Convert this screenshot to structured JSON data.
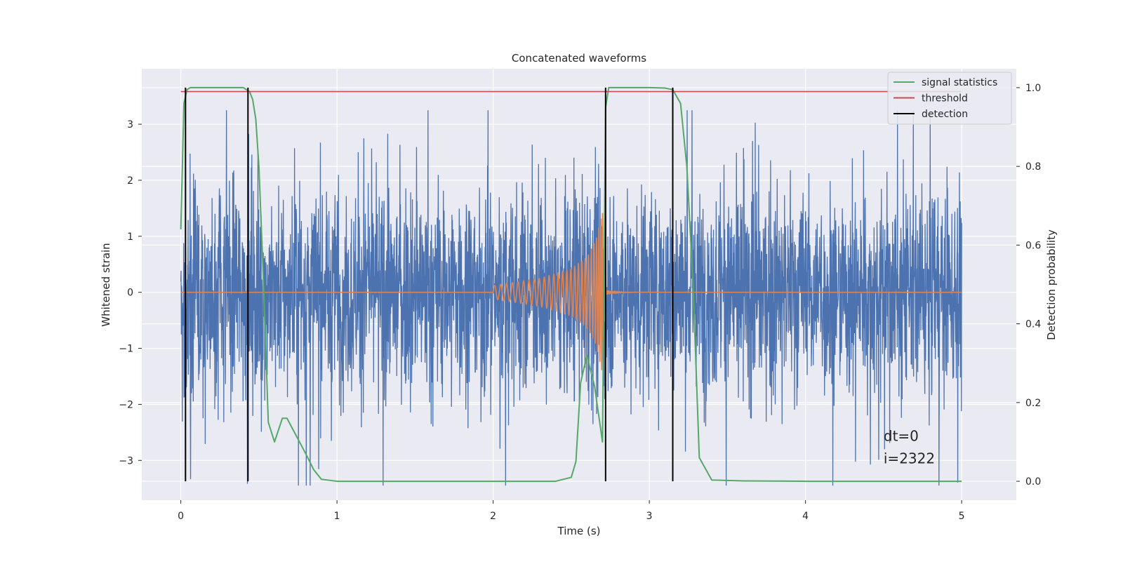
{
  "chart_data": {
    "type": "line",
    "title": "Concatenated waveforms",
    "xlabel": "Time (s)",
    "ylabel": "Whitened strain",
    "y2label": "Detection probability",
    "xlim": [
      -0.25,
      5.35
    ],
    "ylim": [
      -3.71,
      3.99
    ],
    "y2lim": [
      -0.048,
      1.048
    ],
    "x_ticks": [
      0,
      1,
      2,
      3,
      4,
      5
    ],
    "x_tick_labels": [
      "0",
      "1",
      "2",
      "3",
      "4",
      "5"
    ],
    "y_ticks": [
      -3,
      -2,
      -1,
      0,
      1,
      2,
      3
    ],
    "y_tick_labels": [
      "−3",
      "−2",
      "−1",
      "0",
      "1",
      "2",
      "3"
    ],
    "y2_ticks": [
      0.0,
      0.2,
      0.4,
      0.6,
      0.8,
      1.0
    ],
    "y2_tick_labels": [
      "0.0",
      "0.2",
      "0.4",
      "0.6",
      "0.8",
      "1.0"
    ],
    "grid": true,
    "legend_position": "top-right",
    "colors": {
      "noise": "#4c72b0",
      "waveform": "#dd8452",
      "signal_statistics": "#55a868",
      "threshold": "#c44e52",
      "detection": "#000000",
      "background": "#eaeaf2",
      "grid": "#ffffff"
    },
    "series": [
      {
        "name": "",
        "role": "whitened noise strain",
        "axis": "left",
        "x_range": [
          0,
          5
        ],
        "amplitude_envelope": 2.0
      },
      {
        "name": "",
        "role": "injected chirp waveform",
        "axis": "left",
        "x": [
          2.0,
          2.3,
          2.5,
          2.6,
          2.66,
          2.7,
          2.72
        ],
        "amplitude": [
          0.12,
          0.25,
          0.42,
          0.62,
          0.95,
          1.45,
          0.05
        ]
      },
      {
        "name": "signal statistics",
        "axis": "right",
        "x": [
          0.0,
          0.02,
          0.04,
          0.06,
          0.1,
          0.2,
          0.4,
          0.44,
          0.46,
          0.48,
          0.5,
          0.53,
          0.56,
          0.6,
          0.65,
          0.68,
          0.72,
          0.8,
          0.85,
          0.9,
          1.0,
          1.5,
          2.0,
          2.4,
          2.5,
          2.53,
          2.56,
          2.6,
          2.65,
          2.7,
          2.72,
          2.74,
          2.78,
          2.85,
          3.0,
          3.1,
          3.15,
          3.2,
          3.24,
          3.28,
          3.32,
          3.4,
          3.6,
          4.0,
          4.5,
          5.0
        ],
        "y": [
          0.64,
          0.96,
          0.995,
          1.0,
          1.0,
          1.0,
          1.0,
          0.99,
          0.97,
          0.92,
          0.8,
          0.5,
          0.15,
          0.1,
          0.16,
          0.16,
          0.13,
          0.07,
          0.03,
          0.005,
          0.0,
          0.0,
          0.0,
          0.0,
          0.01,
          0.05,
          0.25,
          0.32,
          0.24,
          0.1,
          0.95,
          1.0,
          1.0,
          1.0,
          1.0,
          0.999,
          0.995,
          0.96,
          0.8,
          0.5,
          0.06,
          0.003,
          0.001,
          0.0,
          0.0,
          0.0
        ]
      },
      {
        "name": "threshold",
        "axis": "right",
        "x": [
          0.0,
          5.0
        ],
        "y": [
          0.99,
          0.99
        ]
      },
      {
        "name": "detection",
        "axis": "right",
        "x_positions": [
          0.03,
          0.43,
          2.72,
          3.15
        ],
        "y_range": [
          0.0,
          1.0
        ]
      }
    ],
    "annotations": [
      {
        "text": "dt=0",
        "x": 4.5,
        "y": -2.65
      },
      {
        "text": "i=2322",
        "x": 4.5,
        "y": -3.05
      }
    ]
  }
}
